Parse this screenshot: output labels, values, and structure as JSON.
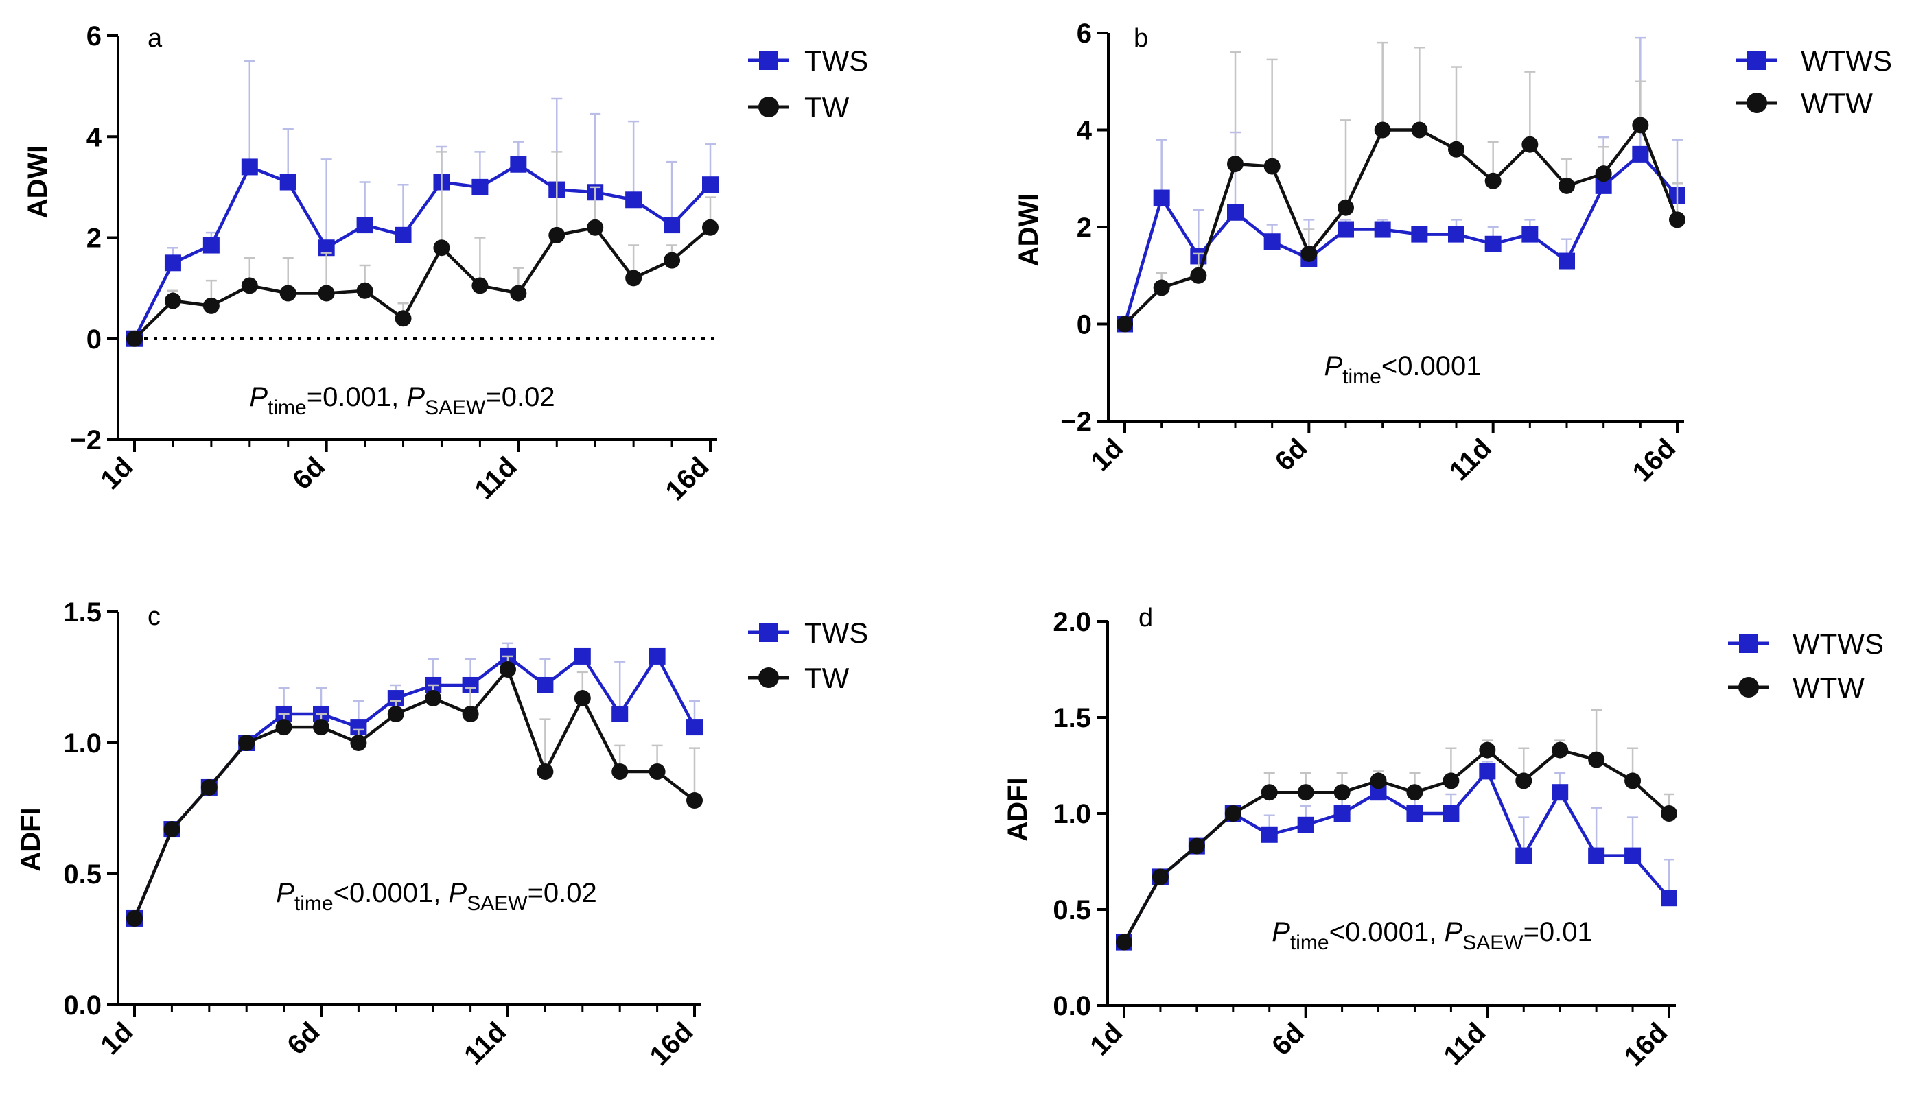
{
  "colors": {
    "blue": "#1e22c8",
    "black": "#111111",
    "error_blue": "#b9bde8",
    "error_black": "#c4c4c4"
  },
  "chart_data": [
    {
      "type": "line",
      "panel": "a",
      "ylabel": "ADWI",
      "ylim": [
        -2,
        6
      ],
      "yticks": [
        -2,
        0,
        2,
        4,
        6
      ],
      "ytick_labels": [
        "−2",
        "0",
        "2",
        "4",
        "6"
      ],
      "xticks": [
        1,
        6,
        11,
        16
      ],
      "xtick_labels": [
        "1d",
        "6d",
        "11d",
        "16d"
      ],
      "zero_line": true,
      "annotation": {
        "p1": "P",
        "s1": "time",
        "t1": "=0.001, ",
        "p2": "P",
        "s2": "SAEW",
        "t2": "=0.02"
      },
      "x": [
        1,
        2,
        3,
        4,
        5,
        6,
        7,
        8,
        9,
        10,
        11,
        12,
        13,
        14,
        15,
        16
      ],
      "series": [
        {
          "name": "TWS",
          "marker": "square",
          "color": "blue",
          "values": [
            0,
            1.5,
            1.85,
            3.4,
            3.1,
            1.8,
            2.25,
            2.05,
            3.1,
            3.0,
            3.45,
            2.95,
            2.9,
            2.75,
            2.25,
            3.05
          ],
          "errors": [
            0,
            0.3,
            0.25,
            2.1,
            1.05,
            1.75,
            0.85,
            1.0,
            0.7,
            0.7,
            0.45,
            1.8,
            1.55,
            1.55,
            1.25,
            0.8
          ]
        },
        {
          "name": "TW",
          "marker": "circle",
          "color": "black",
          "values": [
            0,
            0.75,
            0.65,
            1.05,
            0.9,
            0.9,
            0.95,
            0.4,
            1.8,
            1.05,
            0.9,
            2.05,
            2.2,
            1.2,
            1.55,
            2.2
          ],
          "errors": [
            0,
            0.2,
            0.5,
            0.55,
            0.7,
            0.8,
            0.5,
            0.3,
            1.9,
            0.95,
            0.5,
            1.65,
            0.8,
            0.65,
            0.3,
            0.6
          ]
        }
      ]
    },
    {
      "type": "line",
      "panel": "b",
      "ylabel": "ADWI",
      "ylim": [
        -2,
        6
      ],
      "yticks": [
        -2,
        0,
        2,
        4,
        6
      ],
      "ytick_labels": [
        "−2",
        "0",
        "2",
        "4",
        "6"
      ],
      "xticks": [
        1,
        6,
        11,
        16
      ],
      "xtick_labels": [
        "1d",
        "6d",
        "11d",
        "16d"
      ],
      "zero_line": false,
      "annotation": {
        "p1": "P",
        "s1": "time",
        "t1": "<0.0001",
        "p2": "",
        "s2": "",
        "t2": ""
      },
      "x": [
        1,
        2,
        3,
        4,
        5,
        6,
        7,
        8,
        9,
        10,
        11,
        12,
        13,
        14,
        15,
        16
      ],
      "series": [
        {
          "name": "WTWS",
          "marker": "square",
          "color": "blue",
          "values": [
            0,
            2.6,
            1.4,
            2.3,
            1.7,
            1.35,
            1.95,
            1.95,
            1.85,
            1.85,
            1.65,
            1.85,
            1.3,
            2.85,
            3.5,
            2.65
          ],
          "errors": [
            0,
            1.2,
            0.95,
            1.65,
            0.35,
            0.8,
            0.2,
            0.2,
            0.15,
            0.3,
            0.35,
            0.3,
            0.45,
            1.0,
            2.4,
            1.15
          ]
        },
        {
          "name": "WTW",
          "marker": "circle",
          "color": "black",
          "values": [
            0,
            0.75,
            1.0,
            3.3,
            3.25,
            1.45,
            2.4,
            4.0,
            4.0,
            3.6,
            2.95,
            3.7,
            2.85,
            3.1,
            4.1,
            2.15
          ],
          "errors": [
            0,
            0.3,
            0.45,
            2.3,
            2.2,
            0.5,
            1.8,
            1.8,
            1.7,
            1.7,
            0.8,
            1.5,
            0.55,
            0.55,
            0.9,
            0.75
          ]
        }
      ]
    },
    {
      "type": "line",
      "panel": "c",
      "ylabel": "ADFI",
      "ylim": [
        0,
        1.5
      ],
      "yticks": [
        0,
        0.5,
        1.0,
        1.5
      ],
      "ytick_labels": [
        "0.0",
        "0.5",
        "1.0",
        "1.5"
      ],
      "xticks": [
        1,
        6,
        11,
        16
      ],
      "xtick_labels": [
        "1d",
        "6d",
        "11d",
        "16d"
      ],
      "zero_line": false,
      "annotation": {
        "p1": "P",
        "s1": "time",
        "t1": "<0.0001, ",
        "p2": "P",
        "s2": "SAEW",
        "t2": "=0.02"
      },
      "x": [
        1,
        2,
        3,
        4,
        5,
        6,
        7,
        8,
        9,
        10,
        11,
        12,
        13,
        14,
        15,
        16
      ],
      "series": [
        {
          "name": "TWS",
          "marker": "square",
          "color": "blue",
          "values": [
            0.33,
            0.67,
            0.83,
            1.0,
            1.11,
            1.11,
            1.06,
            1.17,
            1.22,
            1.22,
            1.33,
            1.22,
            1.33,
            1.11,
            1.33,
            1.06
          ],
          "errors": [
            0,
            0,
            0,
            0,
            0.1,
            0.1,
            0.1,
            0.05,
            0.1,
            0.1,
            0.05,
            0.1,
            0,
            0.2,
            0,
            0.1
          ]
        },
        {
          "name": "TW",
          "marker": "circle",
          "color": "black",
          "values": [
            0.33,
            0.67,
            0.83,
            1.0,
            1.06,
            1.06,
            1.0,
            1.11,
            1.17,
            1.11,
            1.28,
            0.89,
            1.17,
            0.89,
            0.89,
            0.78
          ],
          "errors": [
            0,
            0,
            0,
            0,
            0.05,
            0.05,
            0.05,
            0.05,
            0.05,
            0.1,
            0.05,
            0.2,
            0.1,
            0.1,
            0.1,
            0.2
          ]
        }
      ]
    },
    {
      "type": "line",
      "panel": "d",
      "ylabel": "ADFI",
      "ylim": [
        0,
        2.0
      ],
      "yticks": [
        0,
        0.5,
        1.0,
        1.5,
        2.0
      ],
      "ytick_labels": [
        "0.0",
        "0.5",
        "1.0",
        "1.5",
        "2.0"
      ],
      "xticks": [
        1,
        6,
        11,
        16
      ],
      "xtick_labels": [
        "1d",
        "6d",
        "11d",
        "16d"
      ],
      "zero_line": false,
      "annotation": {
        "p1": "P",
        "s1": "time",
        "t1": "<0.0001, ",
        "p2": "P",
        "s2": "SAEW",
        "t2": "=0.01"
      },
      "x": [
        1,
        2,
        3,
        4,
        5,
        6,
        7,
        8,
        9,
        10,
        11,
        12,
        13,
        14,
        15,
        16
      ],
      "series": [
        {
          "name": "WTWS",
          "marker": "square",
          "color": "blue",
          "values": [
            0.33,
            0.67,
            0.83,
            1.0,
            0.89,
            0.94,
            1.0,
            1.11,
            1.0,
            1.0,
            1.22,
            0.78,
            1.11,
            0.78,
            0.78,
            0.56
          ],
          "errors": [
            0,
            0,
            0,
            0,
            0.1,
            0.1,
            0.1,
            0.05,
            0.1,
            0.1,
            0.05,
            0.2,
            0.1,
            0.25,
            0.2,
            0.2
          ]
        },
        {
          "name": "WTW",
          "marker": "circle",
          "color": "black",
          "values": [
            0.33,
            0.67,
            0.83,
            1.0,
            1.11,
            1.11,
            1.11,
            1.17,
            1.11,
            1.17,
            1.33,
            1.17,
            1.33,
            1.28,
            1.17,
            1.0
          ],
          "errors": [
            0,
            0,
            0,
            0,
            0.1,
            0.1,
            0.1,
            0.05,
            0.1,
            0.17,
            0.05,
            0.17,
            0.05,
            0.26,
            0.17,
            0.1
          ]
        }
      ]
    }
  ]
}
